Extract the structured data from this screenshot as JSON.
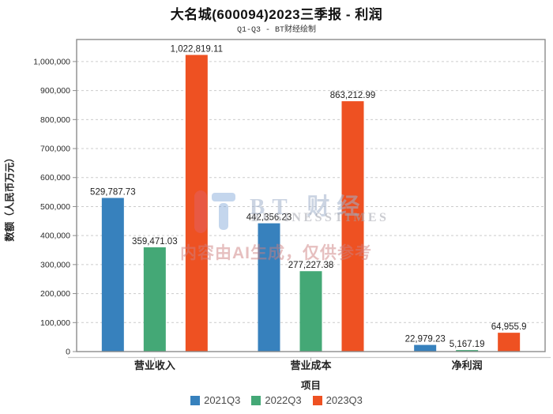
{
  "chart_data": {
    "type": "bar",
    "title": "大名城(600094)2023三季报 - 利润",
    "subtitle": "Q1-Q3 - BT财经绘制",
    "xlabel": "项目",
    "ylabel": "数额（人民币万元）",
    "categories": [
      "营业收入",
      "营业成本",
      "净利润"
    ],
    "series": [
      {
        "name": "2021Q3",
        "color": "#3781BD",
        "values": [
          529787.73,
          442356.23,
          22979.23
        ]
      },
      {
        "name": "2022Q3",
        "color": "#44A876",
        "values": [
          359471.03,
          277227.38,
          5167.19
        ]
      },
      {
        "name": "2023Q3",
        "color": "#EE5122",
        "values": [
          1022819.11,
          863212.99,
          64955.9
        ]
      }
    ],
    "data_labels": [
      [
        "529,787.73",
        "442,356.23",
        "22,979.23"
      ],
      [
        "359,471.03",
        "277,227.38",
        "5,167.19"
      ],
      [
        "1,022,819.11",
        "863,212.99",
        "64,955.9"
      ]
    ],
    "ylim": [
      0,
      1076000
    ],
    "ytick_step": 100000,
    "ytick_labels": [
      "0",
      "100,000",
      "200,000",
      "300,000",
      "400,000",
      "500,000",
      "600,000",
      "700,000",
      "800,000",
      "900,000",
      "1,000,000"
    ],
    "grid": "horizontal-dashed",
    "legend_position": "bottom"
  },
  "watermark": {
    "brand": "BT 财经",
    "brand_sub": "BUSINESSTIMES",
    "ai_note": "内容由AI生成，仅供参考"
  }
}
